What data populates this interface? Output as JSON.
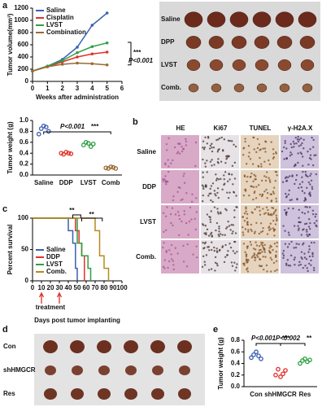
{
  "panel_labels": [
    "a",
    "b",
    "c",
    "d",
    "e"
  ],
  "chart_data": [
    {
      "type": "line",
      "y_label": "Tumor volume(mm³)",
      "x_label": "Weeks after administration",
      "x": [
        0,
        1,
        2,
        3,
        4,
        5
      ],
      "xlim": [
        0,
        6
      ],
      "xticks": [
        0,
        1,
        2,
        3,
        4,
        5,
        6
      ],
      "ylim": [
        0,
        1200
      ],
      "yticks": [
        0,
        200,
        400,
        600,
        800,
        1000,
        1200
      ],
      "legend": "upper left",
      "series": [
        {
          "name": "Saline",
          "color": "#3a5fb0",
          "values": [
            170,
            250,
            360,
            560,
            920,
            1120
          ]
        },
        {
          "name": "Cisplatin",
          "color": "#e0312b",
          "values": [
            170,
            240,
            320,
            400,
            450,
            480
          ]
        },
        {
          "name": "LVST",
          "color": "#2ea043",
          "values": [
            170,
            250,
            340,
            470,
            570,
            630
          ]
        },
        {
          "name": "Combination",
          "color": "#9a6a32",
          "values": [
            170,
            240,
            280,
            300,
            290,
            270
          ]
        }
      ],
      "annotations": [
        "***",
        "P<0.001"
      ]
    },
    {
      "type": "strip",
      "y_label": "Tumor weight (g)",
      "categories": [
        "Saline",
        "DDP",
        "LVST",
        "Comb"
      ],
      "colors": [
        "#3a5fb0",
        "#e0312b",
        "#2ea043",
        "#9a6a32"
      ],
      "points": [
        [
          0.75,
          0.85,
          0.9,
          0.88,
          0.8
        ],
        [
          0.4,
          0.38,
          0.42,
          0.4,
          0.39
        ],
        [
          0.55,
          0.6,
          0.58,
          0.52,
          0.57
        ],
        [
          0.13,
          0.12,
          0.15,
          0.14,
          0.12
        ]
      ],
      "ylim": [
        0,
        1
      ],
      "yticks": [
        {
          "value": 0,
          "label": "0.0"
        },
        0.2,
        0.4,
        0.6,
        0.8,
        {
          "value": 1,
          "label": "1.0"
        }
      ],
      "annotations": [
        "P<0.001",
        "***"
      ]
    },
    {
      "type": "step",
      "y_label": "Percent survival",
      "x_label": "Days post tumor implanting",
      "xlim": [
        0,
        100
      ],
      "xticks": [
        0,
        10,
        20,
        30,
        40,
        50,
        60,
        70,
        80,
        90,
        100
      ],
      "ylim": [
        0,
        100
      ],
      "yticks": [
        0,
        50,
        100
      ],
      "legend": "lower left",
      "series": [
        {
          "name": "Saline",
          "color": "#3a5fb0",
          "x": [
            0,
            40,
            45,
            48,
            50
          ],
          "values": [
            100,
            80,
            60,
            20,
            0
          ]
        },
        {
          "name": "DDP",
          "color": "#e0312b",
          "x": [
            0,
            48,
            52,
            55,
            58
          ],
          "values": [
            100,
            80,
            60,
            40,
            0
          ]
        },
        {
          "name": "LVST",
          "color": "#2ea043",
          "x": [
            0,
            50,
            55,
            62,
            65
          ],
          "values": [
            100,
            60,
            40,
            20,
            0
          ]
        },
        {
          "name": "Comb.",
          "color": "#b58a1e",
          "x": [
            0,
            70,
            75,
            80,
            85
          ],
          "values": [
            100,
            80,
            40,
            20,
            0
          ]
        }
      ],
      "annotations": [
        "**",
        "**"
      ],
      "treatment_label": "treatment",
      "treatment_days": [
        10,
        30
      ]
    },
    {
      "type": "strip",
      "y_label": "Tumor weight (g)",
      "categories": [
        "Con",
        "shHMGCR",
        "Res"
      ],
      "colors": [
        "#3a5fb0",
        "#e0312b",
        "#2ea043"
      ],
      "points": [
        [
          0.5,
          0.55,
          0.6,
          0.53,
          0.48
        ],
        [
          0.2,
          0.3,
          0.17,
          0.22,
          0.28
        ],
        [
          0.4,
          0.45,
          0.48,
          0.43,
          0.46
        ]
      ],
      "ylim": [
        0,
        0.8
      ],
      "yticks": [
        {
          "value": 0,
          "label": "0.0"
        },
        0.2,
        0.4,
        0.6,
        0.8
      ],
      "annotations": [
        "P<0.001",
        "***",
        "P<0.002",
        "**"
      ]
    }
  ],
  "photo_a": {
    "rows": [
      "Saline",
      "DPP",
      "LVST",
      "Comb."
    ]
  },
  "panel_b": {
    "columns": [
      "HE",
      "Ki67",
      "TUNEL",
      "γ-H2A.X"
    ],
    "rows": [
      "Saline",
      "DDP",
      "LVST",
      "Comb."
    ]
  },
  "photo_d": {
    "rows": [
      "Con",
      "shHMGCR",
      "Res"
    ]
  }
}
